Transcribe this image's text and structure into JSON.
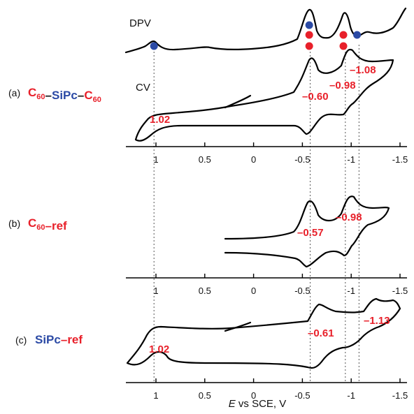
{
  "chart_data": {
    "type": "line",
    "xlabel_italic": "E",
    "xlabel_rest": " vs SCE, V",
    "x_reversed": true,
    "xlim": [
      1.3,
      -1.55
    ],
    "ticks": [
      1,
      0.5,
      0,
      -0.5,
      -1,
      -1.5
    ],
    "tick_labels": [
      "1",
      "0.5",
      "0",
      "-0.5",
      "-1",
      "-1.5"
    ],
    "guide_lines": [
      1.02,
      -0.58,
      -0.94,
      -1.08
    ],
    "panels": [
      {
        "id": "a",
        "label": "(a)",
        "name_parts": [
          {
            "text": "C",
            "color": "#e8202a",
            "sub": "60"
          },
          {
            "text": "–",
            "color": "#111111",
            "sub": ""
          },
          {
            "text": "SiPc",
            "color": "#2b4aa5",
            "sub": ""
          },
          {
            "text": "–",
            "color": "#111111",
            "sub": ""
          },
          {
            "text": "C",
            "color": "#e8202a",
            "sub": "60"
          }
        ],
        "dpv_label": "DPV",
        "cv_label": "CV",
        "dpv_markers": [
          {
            "E": 1.02,
            "color": "#2b4aa5",
            "level": "low"
          },
          {
            "E": -0.57,
            "color": "#2b4aa5",
            "level": "high"
          },
          {
            "E": -0.57,
            "color": "#e8202a",
            "level": "mid"
          },
          {
            "E": -0.57,
            "color": "#e8202a",
            "level": "low"
          },
          {
            "E": -0.92,
            "color": "#e8202a",
            "level": "mid"
          },
          {
            "E": -0.92,
            "color": "#e8202a",
            "level": "low"
          },
          {
            "E": -1.06,
            "color": "#2b4aa5",
            "level": "mid"
          }
        ],
        "annotations": [
          {
            "text": "1.02",
            "E": 1.02
          },
          {
            "text": "–0.60",
            "E": -0.6
          },
          {
            "text": "–0.98",
            "E": -0.98
          },
          {
            "text": "–1.08",
            "E": -1.08
          }
        ]
      },
      {
        "id": "b",
        "label": "(b)",
        "name_parts": [
          {
            "text": "C",
            "color": "#e8202a",
            "sub": "60"
          },
          {
            "text": "–ref",
            "color": "#e8202a",
            "sub": ""
          }
        ],
        "annotations": [
          {
            "text": "–0.57",
            "E": -0.57
          },
          {
            "text": "–0.98",
            "E": -0.98
          }
        ]
      },
      {
        "id": "c",
        "label": "(c)",
        "name_parts": [
          {
            "text": "SiPc",
            "color": "#2b4aa5",
            "sub": ""
          },
          {
            "text": "–ref",
            "color": "#e8202a",
            "sub": ""
          }
        ],
        "annotations": [
          {
            "text": "1.02",
            "E": 1.02
          },
          {
            "text": "–0.61",
            "E": -0.61
          },
          {
            "text": "–1.13",
            "E": -1.13
          }
        ]
      }
    ]
  }
}
